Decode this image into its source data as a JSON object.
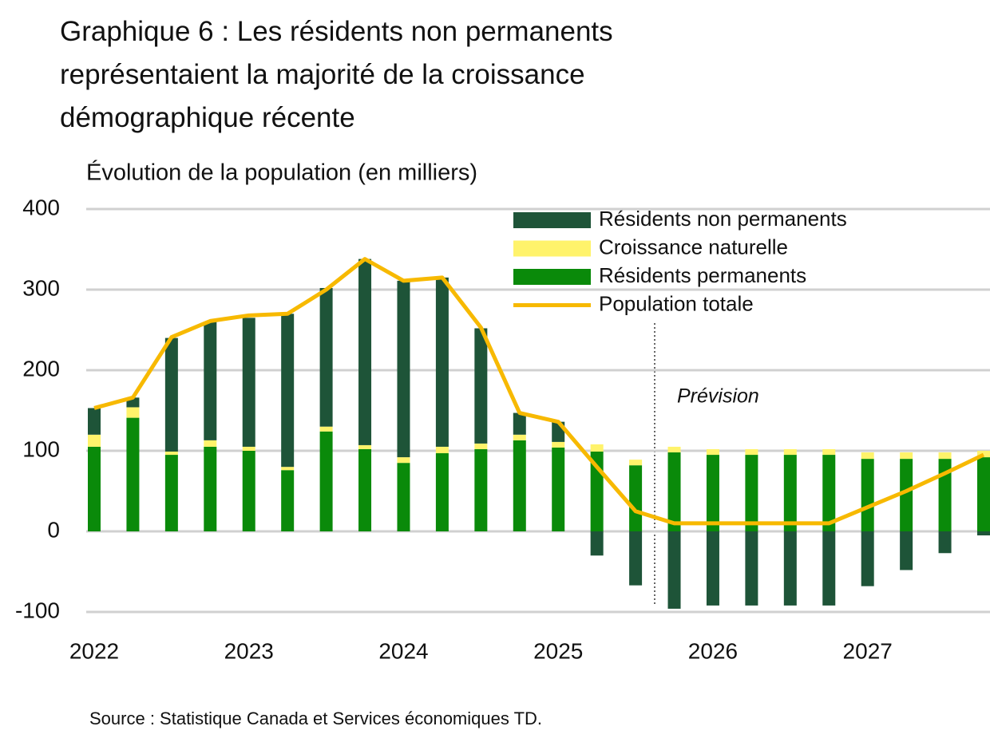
{
  "chart_data": {
    "type": "bar",
    "title": "Graphique 6 : Les résidents non permanents représentaient la majorité de la croissance démographique récente",
    "subtitle": "Évolution de la population (en milliers)",
    "source": "Source : Statistique Canada et Services économiques TD.",
    "annotation": "Prévision",
    "categories": [
      "2022",
      null,
      null,
      null,
      "2023",
      null,
      null,
      null,
      "2024",
      null,
      null,
      null,
      "2025",
      null,
      null,
      null,
      "2026",
      null,
      null,
      null,
      "2027",
      null,
      null,
      null
    ],
    "series": [
      {
        "name": "Résidents non permanents",
        "color": "#1e5438",
        "values": [
          33,
          12,
          141,
          147,
          160,
          190,
          172,
          231,
          219,
          210,
          143,
          27,
          25,
          -30,
          -67,
          -96,
          -92,
          -92,
          -92,
          -92,
          -68,
          -48,
          -27,
          -5
        ]
      },
      {
        "name": "Croissance naturelle",
        "color": "#fff36b",
        "values": [
          15,
          13,
          4,
          8,
          5,
          4,
          6,
          5,
          7,
          8,
          7,
          7,
          7,
          9,
          7,
          7,
          7,
          7,
          7,
          7,
          8,
          8,
          8,
          8
        ]
      },
      {
        "name": "Résidents permanents",
        "color": "#0a8a0a",
        "values": [
          105,
          141,
          95,
          105,
          100,
          76,
          124,
          102,
          85,
          97,
          102,
          113,
          104,
          99,
          82,
          98,
          95,
          95,
          95,
          95,
          90,
          90,
          90,
          92
        ]
      },
      {
        "name": "Population totale",
        "type": "line",
        "color": "#f7b900",
        "values": [
          153,
          166,
          241,
          261,
          268,
          270,
          300,
          338,
          311,
          315,
          253,
          147,
          136,
          80,
          25,
          10,
          10,
          10,
          10,
          10,
          30,
          50,
          72,
          95
        ]
      }
    ],
    "ylim": [
      -100,
      400
    ],
    "yticks": [
      -100,
      0,
      100,
      200,
      300,
      400
    ],
    "grid": true
  }
}
